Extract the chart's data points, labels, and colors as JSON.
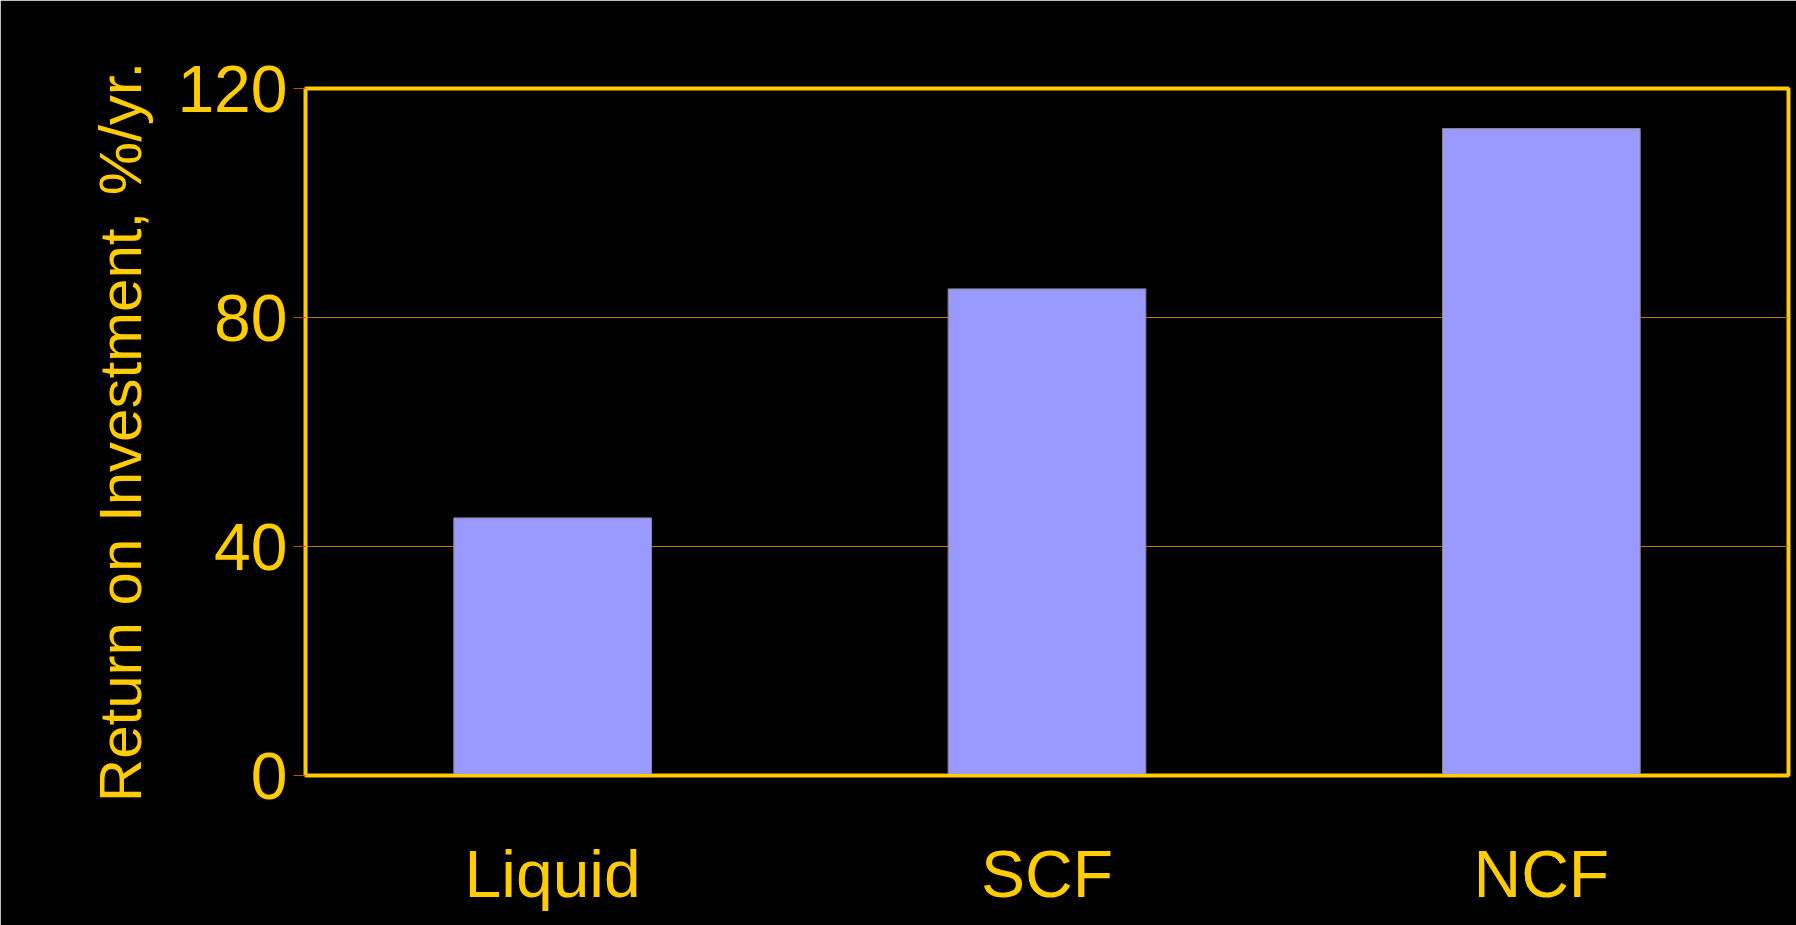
{
  "chart_data": {
    "type": "bar",
    "ylabel": "Return on Investment, %/yr.",
    "categories": [
      "Liquid",
      "SCF",
      "NCF"
    ],
    "values": [
      45,
      85,
      113
    ],
    "color": "#9999ff",
    "ylim": [
      0,
      120
    ],
    "yticks": [
      0,
      40,
      80,
      120
    ],
    "grid": "y"
  }
}
